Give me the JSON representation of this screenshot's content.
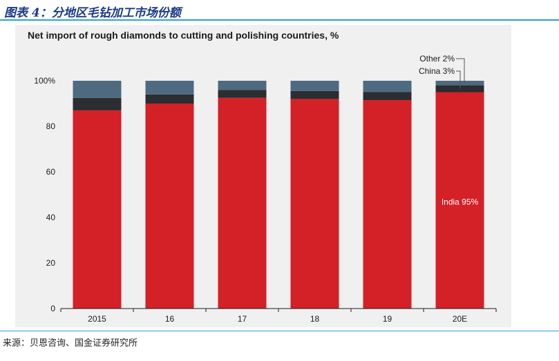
{
  "figure": {
    "caption": "图表 4：分地区毛钻加工市场份额",
    "source": "来源：贝恩咨询、国金证券研究所"
  },
  "colors": {
    "india": "#d42027",
    "china": "#2b2d31",
    "other": "#4e6a80",
    "rule": "#2b9fd9",
    "caption": "#1a3a8a"
  },
  "chart_data": {
    "type": "bar",
    "stacked": true,
    "title": "Net import of rough diamonds to cutting and polishing countries, %",
    "xlabel": "",
    "ylabel": "",
    "categories": [
      "2015",
      "16",
      "17",
      "18",
      "19",
      "20E"
    ],
    "ylim": [
      0,
      100
    ],
    "yticks": [
      0,
      20,
      40,
      60,
      80,
      100
    ],
    "ytick_labels": [
      "0",
      "20",
      "40",
      "60",
      "80",
      "100%"
    ],
    "series": [
      {
        "name": "India",
        "color": "#d42027",
        "values": [
          87,
          90,
          92.5,
          92,
          91.5,
          95
        ]
      },
      {
        "name": "China",
        "color": "#2b2d31",
        "values": [
          5.5,
          4,
          3.5,
          3.5,
          3.5,
          3
        ]
      },
      {
        "name": "Other",
        "color": "#4e6a80",
        "values": [
          7.5,
          6,
          4,
          4.5,
          5,
          2
        ]
      }
    ],
    "annotations": [
      {
        "text": "India 95%"
      },
      {
        "text": "China 3%"
      },
      {
        "text": "Other 2%"
      }
    ],
    "grid": false
  }
}
